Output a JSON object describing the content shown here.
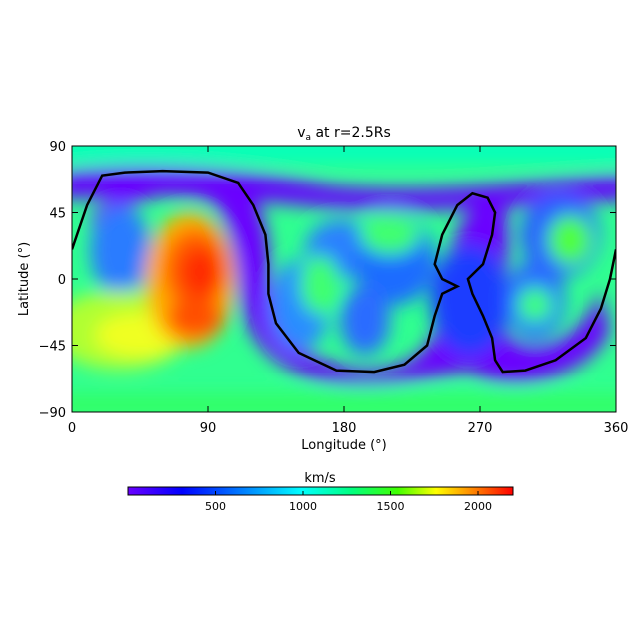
{
  "chart_data": {
    "type": "heatmap",
    "title_main": "v",
    "title_sub": "a",
    "title_rest": " at r=2.5Rs",
    "xlabel": "Longitude (°)",
    "ylabel": "Latitude (°)",
    "xlim": [
      0,
      360
    ],
    "ylim": [
      -90,
      90
    ],
    "x_ticks": [
      "0",
      "90",
      "180",
      "270",
      "360"
    ],
    "y_ticks": [
      "90",
      "45",
      "0",
      "−45",
      "−90"
    ],
    "x_tick_values": [
      0,
      90,
      180,
      270,
      360
    ],
    "y_tick_values": [
      90,
      45,
      0,
      -45,
      -90
    ],
    "colorbar": {
      "label": "km/s",
      "range": [
        0,
        2200
      ],
      "ticks": [
        "500",
        "1000",
        "1500",
        "2000"
      ],
      "tick_values": [
        500,
        1000,
        1500,
        2000
      ]
    },
    "colormap": [
      "#6a00ff",
      "#0000ff",
      "#00ffff",
      "#00ff80",
      "#80ff00",
      "#ffff00",
      "#ff8000",
      "#ff0000"
    ],
    "field_notes": {
      "high_speed_regions": [
        {
          "lon_range": [
            55,
            115
          ],
          "lat_range": [
            -40,
            35
          ],
          "peak_kms": 2100
        }
      ],
      "slow_belt": "purple band following the black neutral line"
    },
    "neutral_line": [
      [
        0,
        20
      ],
      [
        10,
        50
      ],
      [
        20,
        70
      ],
      [
        35,
        72
      ],
      [
        60,
        73
      ],
      [
        90,
        72
      ],
      [
        110,
        65
      ],
      [
        120,
        50
      ],
      [
        128,
        30
      ],
      [
        130,
        10
      ],
      [
        130,
        -10
      ],
      [
        135,
        -30
      ],
      [
        150,
        -50
      ],
      [
        175,
        -62
      ],
      [
        200,
        -63
      ],
      [
        220,
        -58
      ],
      [
        235,
        -45
      ],
      [
        240,
        -25
      ],
      [
        245,
        -10
      ],
      [
        255,
        -5
      ],
      [
        245,
        0
      ],
      [
        240,
        10
      ],
      [
        245,
        30
      ],
      [
        255,
        50
      ],
      [
        265,
        58
      ],
      [
        275,
        55
      ],
      [
        280,
        45
      ],
      [
        278,
        30
      ],
      [
        272,
        10
      ],
      [
        262,
        0
      ],
      [
        265,
        -10
      ],
      [
        272,
        -25
      ],
      [
        278,
        -40
      ],
      [
        280,
        -55
      ],
      [
        285,
        -63
      ],
      [
        300,
        -62
      ],
      [
        320,
        -55
      ],
      [
        340,
        -40
      ],
      [
        350,
        -20
      ],
      [
        356,
        0
      ],
      [
        360,
        20
      ]
    ]
  }
}
